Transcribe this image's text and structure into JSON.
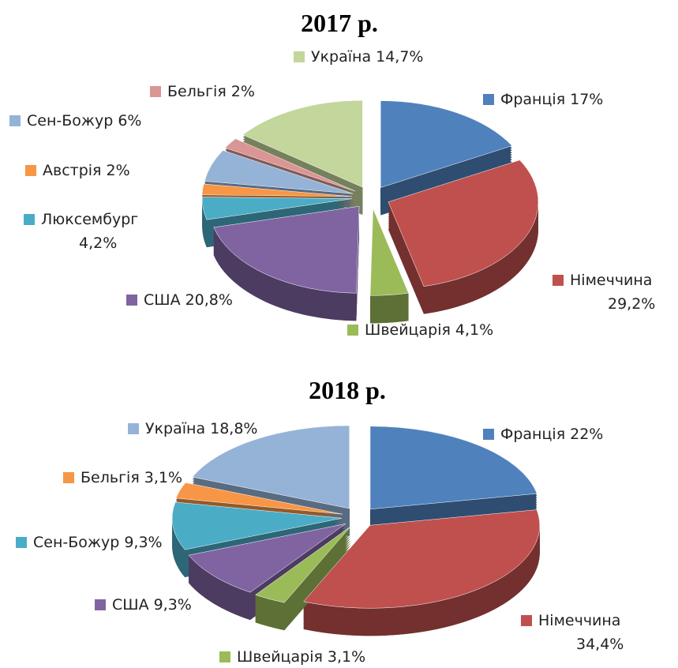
{
  "chart_data": [
    {
      "type": "pie3d",
      "title": "2017 р.",
      "categories": [
        "Франція",
        "Німеччина",
        "Швейцарія",
        "США",
        "Люксембург",
        "Австрія",
        "Сен-Божур",
        "Бельгія",
        "Україна"
      ],
      "values": [
        17,
        29.2,
        4.1,
        20.8,
        4.2,
        2,
        6,
        2,
        14.7
      ],
      "value_labels": [
        "17%",
        "29,2%",
        "4,1%",
        "20,8%",
        "4,2%",
        "2%",
        "6%",
        "2%",
        "14,7%"
      ],
      "colors": [
        "#4f81bd",
        "#c0504d",
        "#9bbb59",
        "#8064a2",
        "#4bacc6",
        "#f79646",
        "#95b3d7",
        "#d99694",
        "#c3d69b"
      ]
    },
    {
      "type": "pie3d",
      "title": "2018 р.",
      "categories": [
        "Франція",
        "Німеччина",
        "Швейцарія",
        "США",
        "Сен-Божур",
        "Бельгія",
        "Україна"
      ],
      "values": [
        22,
        34.4,
        3.1,
        9.3,
        9.3,
        3.1,
        18.8
      ],
      "value_labels": [
        "22%",
        "34,4%",
        "3,1%",
        "9,3%",
        "9,3%",
        "3,1%",
        "18,8%"
      ],
      "colors": [
        "#4f81bd",
        "#c0504d",
        "#9bbb59",
        "#8064a2",
        "#4bacc6",
        "#f79646",
        "#95b3d7"
      ]
    }
  ]
}
